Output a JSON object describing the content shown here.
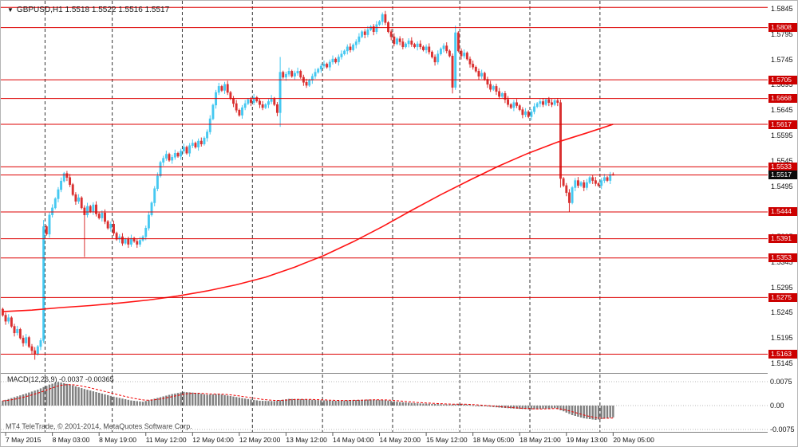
{
  "header": {
    "dropdown_icon": "▼",
    "symbol_info": "GBPUSD,H1  1.5518 1.5522 1.5516 1.5517"
  },
  "footer": {
    "copyright": "MT4 TeleTrade, © 2001-2014, MetaQuotes Software Corp."
  },
  "colors": {
    "bull": "#45c8f1",
    "bear": "#d93030",
    "level": "#dd0000",
    "ma": "#ff1414",
    "histogram": "#7f7f7f",
    "signal": "#ee0000",
    "badge": "#cc0000",
    "current_badge": "#0b0b0b"
  },
  "chart_data": [
    {
      "type": "candlestick",
      "title": "GBPUSD H1 candlestick chart",
      "symbol": "GBPUSD",
      "timeframe": "H1",
      "current_bar": {
        "open": 1.5518,
        "high": 1.5522,
        "low": 1.5516,
        "close": 1.5517
      },
      "current_price": 1.5517,
      "ylim": [
        1.5126,
        1.5861
      ],
      "y_axis_labels": [
        "1.5845",
        "1.5795",
        "1.5745",
        "1.5695",
        "1.5645",
        "1.5595",
        "1.5545",
        "1.5495",
        "1.5445",
        "1.5395",
        "1.5345",
        "1.5295",
        "1.5245",
        "1.5195",
        "1.5145"
      ],
      "level_lines": [
        1.5808,
        1.5705,
        1.5668,
        1.5617,
        1.5533,
        1.5444,
        1.5391,
        1.5353,
        1.5275,
        1.5163
      ],
      "extra_lines": [
        1.5848
      ],
      "first_open": 1.5252,
      "closes": [
        1.524,
        1.5228,
        1.5235,
        1.5218,
        1.5205,
        1.5212,
        1.5195,
        1.5185,
        1.5196,
        1.5178,
        1.517,
        1.5163,
        1.5178,
        1.519,
        1.5415,
        1.54,
        1.5438,
        1.5452,
        1.547,
        1.5488,
        1.5505,
        1.552,
        1.5512,
        1.5498,
        1.5478,
        1.5465,
        1.5472,
        1.5452,
        1.5438,
        1.5455,
        1.5445,
        1.5458,
        1.544,
        1.5432,
        1.5442,
        1.5425,
        1.5412,
        1.542,
        1.5402,
        1.539,
        1.5395,
        1.5382,
        1.539,
        1.538,
        1.5392,
        1.5386,
        1.538,
        1.5388,
        1.5395,
        1.5412,
        1.5438,
        1.5462,
        1.549,
        1.5515,
        1.5542,
        1.555,
        1.5558,
        1.5546,
        1.5552,
        1.556,
        1.5554,
        1.5564,
        1.5572,
        1.556,
        1.5575,
        1.558,
        1.5572,
        1.5584,
        1.5578,
        1.559,
        1.5602,
        1.5628,
        1.5655,
        1.568,
        1.5692,
        1.5684,
        1.5696,
        1.568,
        1.5668,
        1.5658,
        1.5645,
        1.5635,
        1.565,
        1.5658,
        1.5666,
        1.566,
        1.567,
        1.5663,
        1.5656,
        1.565,
        1.5656,
        1.5662,
        1.5668,
        1.5656,
        1.564,
        1.572,
        1.571,
        1.5716,
        1.5722,
        1.5712,
        1.5718,
        1.5722,
        1.571,
        1.57,
        1.5694,
        1.5704,
        1.5712,
        1.572,
        1.5726,
        1.5732,
        1.5736,
        1.573,
        1.574,
        1.5746,
        1.574,
        1.575,
        1.5756,
        1.5762,
        1.577,
        1.5764,
        1.5774,
        1.578,
        1.579,
        1.58,
        1.5794,
        1.5804,
        1.581,
        1.58,
        1.5814,
        1.582,
        1.5834,
        1.5818,
        1.58,
        1.579,
        1.5776,
        1.5786,
        1.578,
        1.577,
        1.5776,
        1.5782,
        1.5775,
        1.577,
        1.5776,
        1.577,
        1.5764,
        1.577,
        1.576,
        1.575,
        1.574,
        1.5756,
        1.5766,
        1.5772,
        1.5762,
        1.5752,
        1.569,
        1.5798,
        1.5762,
        1.5752,
        1.5758,
        1.5746,
        1.5736,
        1.573,
        1.5722,
        1.5712,
        1.5718,
        1.5706,
        1.5696,
        1.5686,
        1.5692,
        1.5682,
        1.5672,
        1.5678,
        1.5666,
        1.5656,
        1.565,
        1.566,
        1.5654,
        1.5646,
        1.5636,
        1.5642,
        1.5632,
        1.5642,
        1.5652,
        1.5658,
        1.5662,
        1.5656,
        1.5666,
        1.566,
        1.5656,
        1.5664,
        1.566,
        1.551,
        1.5496,
        1.5482,
        1.5462,
        1.5492,
        1.5506,
        1.5496,
        1.5502,
        1.5492,
        1.5502,
        1.5512,
        1.5506,
        1.55,
        1.5496,
        1.5506,
        1.5512,
        1.5506,
        1.5518,
        1.5517
      ],
      "wick_overrides": {
        "11": {
          "l": 1.5152
        },
        "14": {
          "h": 1.5428,
          "l": 1.5185
        },
        "28": {
          "l": 1.5355
        },
        "95": {
          "h": 1.575,
          "l": 1.5612
        },
        "130": {
          "h": 1.5838
        },
        "154": {
          "l": 1.5678
        },
        "155": {
          "h": 1.5812
        },
        "191": {
          "h": 1.5666,
          "l": 1.5492
        },
        "194": {
          "l": 1.5444
        },
        "209": {
          "h": 1.5522,
          "l": 1.5516
        }
      },
      "ma_points": [
        [
          0,
          1.5247
        ],
        [
          10,
          1.525
        ],
        [
          20,
          1.5255
        ],
        [
          30,
          1.5259
        ],
        [
          40,
          1.5264
        ],
        [
          50,
          1.527
        ],
        [
          60,
          1.5278
        ],
        [
          70,
          1.5288
        ],
        [
          80,
          1.53
        ],
        [
          90,
          1.5315
        ],
        [
          100,
          1.5335
        ],
        [
          110,
          1.5358
        ],
        [
          120,
          1.5385
        ],
        [
          130,
          1.5415
        ],
        [
          140,
          1.5447
        ],
        [
          150,
          1.5478
        ],
        [
          160,
          1.5507
        ],
        [
          170,
          1.5535
        ],
        [
          180,
          1.556
        ],
        [
          190,
          1.5582
        ],
        [
          200,
          1.56
        ],
        [
          209,
          1.5617
        ]
      ],
      "time_labels": [
        {
          "i": 1,
          "t": "7 May 2015"
        },
        {
          "i": 17,
          "t": "8 May 03:00"
        },
        {
          "i": 33,
          "t": "8 May 19:00"
        },
        {
          "i": 49,
          "t": "11 May 12:00"
        },
        {
          "i": 65,
          "t": "12 May 04:00"
        },
        {
          "i": 81,
          "t": "12 May 20:00"
        },
        {
          "i": 97,
          "t": "13 May 12:00"
        },
        {
          "i": 113,
          "t": "14 May 04:00"
        },
        {
          "i": 129,
          "t": "14 May 20:00"
        },
        {
          "i": 145,
          "t": "15 May 12:00"
        },
        {
          "i": 161,
          "t": "18 May 05:00"
        },
        {
          "i": 177,
          "t": "18 May 21:00"
        },
        {
          "i": 193,
          "t": "19 May 13:00"
        },
        {
          "i": 209,
          "t": "20 May 05:00"
        }
      ],
      "day_separator_indices": [
        14,
        37,
        61,
        85,
        109,
        133,
        156,
        180,
        204
      ]
    },
    {
      "type": "bar",
      "name": "MACD",
      "label": "MACD(12,26,9) -0.0037 -0.00365",
      "ylim": [
        -0.0095,
        0.0095
      ],
      "axis_labels": [
        "0.0075",
        "0.00",
        "-0.0075"
      ],
      "axis_values": [
        0.0075,
        0,
        -0.0075
      ],
      "signal_period": 9,
      "waypoints": [
        [
          0,
          0.0015
        ],
        [
          6,
          0.0032
        ],
        [
          12,
          0.005
        ],
        [
          16,
          0.0066
        ],
        [
          19,
          0.0074
        ],
        [
          23,
          0.0066
        ],
        [
          28,
          0.0052
        ],
        [
          33,
          0.004
        ],
        [
          38,
          0.0028
        ],
        [
          44,
          0.0016
        ],
        [
          48,
          0.0012
        ],
        [
          53,
          0.0024
        ],
        [
          58,
          0.0036
        ],
        [
          62,
          0.0043
        ],
        [
          66,
          0.004
        ],
        [
          70,
          0.0034
        ],
        [
          74,
          0.0036
        ],
        [
          78,
          0.003
        ],
        [
          83,
          0.0022
        ],
        [
          88,
          0.0015
        ],
        [
          93,
          0.0014
        ],
        [
          98,
          0.0021
        ],
        [
          103,
          0.002
        ],
        [
          108,
          0.0017
        ],
        [
          114,
          0.0015
        ],
        [
          120,
          0.0017
        ],
        [
          126,
          0.0019
        ],
        [
          131,
          0.0017
        ],
        [
          136,
          0.0011
        ],
        [
          142,
          0.0007
        ],
        [
          148,
          0.0005
        ],
        [
          153,
          0.0003
        ],
        [
          157,
          0.0005
        ],
        [
          161,
          0.0001
        ],
        [
          166,
          -0.0003
        ],
        [
          171,
          -0.0007
        ],
        [
          176,
          -0.001
        ],
        [
          181,
          -0.0012
        ],
        [
          185,
          -0.001
        ],
        [
          189,
          -0.0008
        ],
        [
          192,
          -0.0018
        ],
        [
          195,
          -0.003
        ],
        [
          199,
          -0.004
        ],
        [
          203,
          -0.0045
        ],
        [
          206,
          -0.0041
        ],
        [
          209,
          -0.0037
        ]
      ]
    }
  ]
}
